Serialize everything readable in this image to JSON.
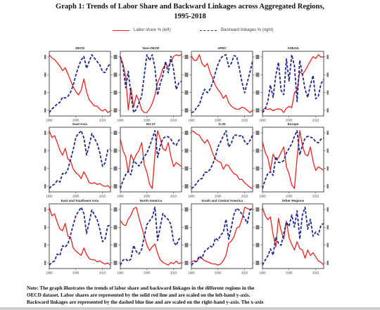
{
  "title": {
    "line1": "Graph 1: Trends of Labor Share and Backward Linkages across Aggregated Regions,",
    "line2": "1995-2018"
  },
  "legend": {
    "red_label": "Labor share % (left)",
    "blue_label": "Backward linkages % (right)"
  },
  "colors": {
    "labor_share": "#e8231e",
    "backward_linkages": "#1f2a8c"
  },
  "x_ticks": [
    "1995",
    "2005",
    "2015"
  ],
  "note": {
    "line1": "Note: The graph illustrates the trends of labor share and backward linkages in the different regions in the",
    "line2": "OECD dataset. Labor shares are represented by the solid red line and are scaled on the left-hand y-axis.",
    "line3": "Backward linkages are represented by the dashed blue line and are scaled on the right-hand y-axis. The x-axis"
  },
  "chart_data": [
    {
      "type": "line",
      "title": "OECD",
      "x": [
        1995,
        1996,
        1997,
        1998,
        1999,
        2000,
        2001,
        2002,
        2003,
        2004,
        2005,
        2006,
        2007,
        2008,
        2009,
        2010,
        2011,
        2012,
        2013,
        2014,
        2015,
        2016,
        2017,
        2018
      ],
      "series": [
        {
          "name": "Labor share % (left)",
          "axis": "left",
          "values": [
            56.8,
            56.6,
            56.5,
            56.3,
            56.1,
            55.8,
            56.0,
            55.6,
            55.2,
            54.8,
            54.5,
            54.3,
            54.6,
            55.3,
            54.5,
            54.0,
            53.8,
            53.6,
            53.6,
            53.4,
            53.3,
            53.4,
            53.2,
            53.3
          ]
        },
        {
          "name": "Backward linkages % (right)",
          "axis": "right",
          "values": [
            10.8,
            11.2,
            11.5,
            11.8,
            12.0,
            12.6,
            12.5,
            12.7,
            13.2,
            14.0,
            15.2,
            16.2,
            17.0,
            17.4,
            16.0,
            16.8,
            17.6,
            17.2,
            16.8,
            16.4,
            15.6,
            15.5,
            16.2,
            16.6
          ]
        }
      ]
    },
    {
      "type": "line",
      "title": "Non-OECD",
      "x": [
        1995,
        1996,
        1997,
        1998,
        1999,
        2000,
        2001,
        2002,
        2003,
        2004,
        2005,
        2006,
        2007,
        2008,
        2009,
        2010,
        2011,
        2012,
        2013,
        2014,
        2015,
        2016,
        2017,
        2018
      ],
      "series": [
        {
          "name": "Labor share % (left)",
          "axis": "left",
          "values": [
            46.0,
            45.2,
            43.8,
            40.2,
            42.6,
            40.5,
            41.8,
            41.2,
            40.2,
            39.9,
            39.9,
            40.3,
            40.9,
            41.8,
            43.2,
            43.8,
            44.7,
            45.2,
            44.9,
            45.5,
            46.0,
            46.2,
            46.1,
            46.2
          ]
        },
        {
          "name": "Backward linkages % (right)",
          "axis": "right",
          "values": [
            26.8,
            25.6,
            23.0,
            25.0,
            22.1,
            20.0,
            20.4,
            21.2,
            22.0,
            24.5,
            27.0,
            26.3,
            27.0,
            25.4,
            22.1,
            23.5,
            24.5,
            26.2,
            24.8,
            26.8,
            25.2,
            22.8,
            23.6,
            23.8
          ]
        }
      ]
    },
    {
      "type": "line",
      "title": "APEC",
      "x": [
        1995,
        1996,
        1997,
        1998,
        1999,
        2000,
        2001,
        2002,
        2003,
        2004,
        2005,
        2006,
        2007,
        2008,
        2009,
        2010,
        2011,
        2012,
        2013,
        2014,
        2015,
        2016,
        2017,
        2018
      ],
      "series": [
        {
          "name": "Labor share % (left)",
          "axis": "left",
          "values": [
            54.9,
            54.5,
            54.5,
            55.0,
            54.2,
            53.9,
            54.2,
            53.4,
            52.8,
            52.2,
            51.8,
            51.5,
            51.0,
            51.3,
            50.6,
            50.3,
            50.1,
            50.0,
            50.0,
            50.2,
            50.1,
            49.9,
            49.7,
            49.9
          ]
        },
        {
          "name": "Backward linkages % (right)",
          "axis": "right",
          "values": [
            13.9,
            14.0,
            14.5,
            14.8,
            15.8,
            16.6,
            16.2,
            16.6,
            17.4,
            18.5,
            19.5,
            20.2,
            20.5,
            20.6,
            19.2,
            19.6,
            20.5,
            20.4,
            19.0,
            17.4,
            16.2,
            17.4,
            18.6,
            19.9
          ]
        }
      ]
    },
    {
      "type": "line",
      "title": "ASEAN",
      "x": [
        1995,
        1996,
        1997,
        1998,
        1999,
        2000,
        2001,
        2002,
        2003,
        2004,
        2005,
        2006,
        2007,
        2008,
        2009,
        2010,
        2011,
        2012,
        2013,
        2014,
        2015,
        2016,
        2017,
        2018
      ],
      "series": [
        {
          "name": "Labor share % (left)",
          "axis": "left",
          "values": [
            37.2,
            37.5,
            37.3,
            37.4,
            37.1,
            37.3,
            37.4,
            37.3,
            36.8,
            37.5,
            37.8,
            37.6,
            40.0,
            40.5,
            43.5,
            43.0,
            43.6,
            44.4,
            45.2,
            45.9,
            45.6,
            46.2,
            45.8,
            45.9
          ]
        },
        {
          "name": "Backward linkages % (right)",
          "axis": "right",
          "values": [
            28.0,
            28.5,
            29.6,
            32.0,
            30.2,
            33.4,
            35.3,
            31.2,
            30.6,
            35.8,
            32.6,
            36.4,
            34.8,
            29.6,
            35.6,
            33.6,
            31.4,
            30.2,
            32.0,
            33.4,
            30.0,
            30.4,
            32.2,
            32.8
          ]
        }
      ]
    },
    {
      "type": "line",
      "title": "East Asia",
      "x": [
        1995,
        1996,
        1997,
        1998,
        1999,
        2000,
        2001,
        2002,
        2003,
        2004,
        2005,
        2006,
        2007,
        2008,
        2009,
        2010,
        2011,
        2012,
        2013,
        2014,
        2015,
        2016,
        2017,
        2018
      ],
      "series": [
        {
          "name": "Labor share % (left)",
          "axis": "left",
          "values": [
            55.2,
            54.5,
            54.7,
            54.0,
            53.2,
            52.7,
            53.4,
            52.3,
            52.1,
            51.3,
            50.9,
            50.7,
            50.3,
            51.0,
            50.5,
            49.9,
            49.8,
            49.9,
            49.7,
            49.8,
            49.6,
            49.5,
            49.6,
            49.3
          ]
        },
        {
          "name": "Backward linkages % (right)",
          "axis": "right",
          "values": [
            13.9,
            14.3,
            14.5,
            15.0,
            14.8,
            16.0,
            15.9,
            16.6,
            18.0,
            19.3,
            21.1,
            21.6,
            22.0,
            21.0,
            18.6,
            19.9,
            21.6,
            20.9,
            20.2,
            18.9,
            17.0,
            17.5,
            19.3,
            19.4
          ]
        }
      ]
    },
    {
      "type": "line",
      "title": "EU-27",
      "x": [
        1995,
        1996,
        1997,
        1998,
        1999,
        2000,
        2001,
        2002,
        2003,
        2004,
        2005,
        2006,
        2007,
        2008,
        2009,
        2010,
        2011,
        2012,
        2013,
        2014,
        2015,
        2016,
        2017,
        2018
      ],
      "series": [
        {
          "name": "Labor share % (left)",
          "axis": "left",
          "values": [
            55.8,
            55.2,
            54.9,
            54.1,
            55.0,
            54.7,
            55.0,
            55.2,
            55.6,
            54.5,
            54.1,
            53.5,
            53.3,
            55.0,
            56.2,
            55.8,
            55.3,
            55.2,
            55.6,
            54.9,
            54.4,
            54.6,
            54.5,
            54.4
          ]
        },
        {
          "name": "Backward linkages % (right)",
          "axis": "right",
          "values": [
            11.6,
            12.5,
            13.2,
            13.6,
            13.2,
            14.8,
            14.5,
            14.2,
            14.7,
            15.3,
            15.7,
            16.5,
            17.4,
            18.3,
            15.2,
            16.5,
            17.4,
            17.6,
            17.6,
            17.3,
            16.8,
            16.6,
            17.2,
            17.4
          ]
        }
      ]
    },
    {
      "type": "line",
      "title": "G-20",
      "x": [
        1995,
        1996,
        1997,
        1998,
        1999,
        2000,
        2001,
        2002,
        2003,
        2004,
        2005,
        2006,
        2007,
        2008,
        2009,
        2010,
        2011,
        2012,
        2013,
        2014,
        2015,
        2016,
        2017,
        2018
      ],
      "series": [
        {
          "name": "Labor share % (left)",
          "axis": "left",
          "values": [
            55.4,
            55.3,
            55.1,
            55.0,
            54.6,
            54.3,
            54.6,
            54.1,
            53.4,
            52.9,
            52.7,
            52.6,
            52.0,
            52.4,
            52.3,
            51.9,
            51.6,
            51.5,
            51.1,
            51.1,
            50.8,
            50.6,
            50.4,
            50.3
          ]
        },
        {
          "name": "Backward linkages % (right)",
          "axis": "right",
          "values": [
            10.8,
            11.0,
            11.4,
            11.8,
            11.9,
            12.6,
            12.6,
            12.9,
            13.5,
            14.3,
            15.4,
            16.0,
            16.6,
            17.2,
            15.4,
            15.8,
            16.7,
            16.7,
            16.6,
            16.7,
            16.0,
            15.7,
            16.1,
            16.7
          ]
        }
      ]
    },
    {
      "type": "line",
      "title": "Europe",
      "x": [
        1995,
        1996,
        1997,
        1998,
        1999,
        2000,
        2001,
        2002,
        2003,
        2004,
        2005,
        2006,
        2007,
        2008,
        2009,
        2010,
        2011,
        2012,
        2013,
        2014,
        2015,
        2016,
        2017,
        2018
      ],
      "series": [
        {
          "name": "Labor share % (left)",
          "axis": "left",
          "values": [
            55.9,
            55.3,
            55.0,
            54.3,
            55.2,
            54.9,
            55.0,
            55.3,
            55.6,
            54.5,
            54.1,
            53.5,
            53.3,
            55.0,
            56.5,
            55.7,
            55.2,
            55.1,
            55.6,
            54.8,
            54.3,
            54.5,
            54.4,
            54.3
          ]
        },
        {
          "name": "Backward linkages % (right)",
          "axis": "right",
          "values": [
            12.2,
            13.1,
            13.8,
            14.0,
            13.6,
            15.6,
            15.0,
            15.0,
            15.2,
            16.0,
            16.5,
            17.0,
            17.8,
            18.4,
            15.8,
            16.8,
            17.6,
            17.8,
            17.7,
            17.6,
            17.2,
            17.1,
            17.5,
            17.6
          ]
        }
      ]
    },
    {
      "type": "line",
      "title": "East and Southeast Asia",
      "x": [
        1995,
        1996,
        1997,
        1998,
        1999,
        2000,
        2001,
        2002,
        2003,
        2004,
        2005,
        2006,
        2007,
        2008,
        2009,
        2010,
        2011,
        2012,
        2013,
        2014,
        2015,
        2016,
        2017,
        2018
      ],
      "series": [
        {
          "name": "Labor share % (left)",
          "axis": "left",
          "values": [
            54.0,
            53.2,
            53.4,
            52.6,
            52.0,
            51.8,
            52.5,
            51.3,
            51.2,
            50.2,
            49.9,
            49.7,
            49.5,
            50.2,
            49.6,
            49.2,
            49.1,
            49.1,
            48.9,
            49.0,
            48.8,
            48.7,
            48.8,
            48.6
          ]
        },
        {
          "name": "Backward linkages % (right)",
          "axis": "right",
          "values": [
            15.2,
            15.6,
            15.8,
            16.8,
            16.6,
            18.0,
            17.8,
            18.3,
            19.6,
            21.0,
            22.4,
            23.0,
            23.6,
            22.7,
            19.8,
            21.4,
            23.2,
            22.5,
            21.8,
            20.4,
            18.6,
            19.0,
            20.9,
            21.0
          ]
        }
      ]
    },
    {
      "type": "line",
      "title": "North America",
      "x": [
        1995,
        1996,
        1997,
        1998,
        1999,
        2000,
        2001,
        2002,
        2003,
        2004,
        2005,
        2006,
        2007,
        2008,
        2009,
        2010,
        2011,
        2012,
        2013,
        2014,
        2015,
        2016,
        2017,
        2018
      ],
      "series": [
        {
          "name": "Labor share % (left)",
          "axis": "left",
          "values": [
            58.5,
            58.2,
            58.1,
            58.6,
            58.9,
            59.4,
            59.5,
            58.7,
            58.0,
            57.3,
            56.6,
            56.2,
            56.5,
            56.7,
            56.0,
            55.5,
            55.3,
            55.2,
            55.1,
            55.3,
            55.2,
            55.4,
            55.2,
            55.3
          ]
        },
        {
          "name": "Backward linkages % (right)",
          "axis": "right",
          "values": [
            8.9,
            9.3,
            9.4,
            9.2,
            9.4,
            10.5,
            10.0,
            9.8,
            10.2,
            11.2,
            12.2,
            12.5,
            12.8,
            13.6,
            10.9,
            12.0,
            13.1,
            12.8,
            12.6,
            12.2,
            10.8,
            10.5,
            11.0,
            11.2
          ]
        }
      ]
    },
    {
      "type": "line",
      "title": "South and Central America",
      "x": [
        1995,
        1996,
        1997,
        1998,
        1999,
        2000,
        2001,
        2002,
        2003,
        2004,
        2005,
        2006,
        2007,
        2008,
        2009,
        2010,
        2011,
        2012,
        2013,
        2014,
        2015,
        2016,
        2017,
        2018
      ],
      "series": [
        {
          "name": "Labor share % (left)",
          "axis": "left",
          "values": [
            41.5,
            41.6,
            41.5,
            41.9,
            41.8,
            41.6,
            41.5,
            41.4,
            41.3,
            41.3,
            41.2,
            41.3,
            41.6,
            42.1,
            43.2,
            43.4,
            43.8,
            44.6,
            44.7,
            45.4,
            46.5,
            46.4,
            46.3,
            46.3
          ]
        },
        {
          "name": "Backward linkages % (right)",
          "axis": "right",
          "values": [
            8.9,
            9.2,
            9.3,
            9.8,
            9.6,
            10.3,
            10.5,
            10.8,
            10.7,
            11.6,
            11.4,
            11.9,
            12.2,
            13.5,
            11.5,
            12.7,
            14.0,
            14.6,
            14.4,
            14.0,
            13.6,
            13.1,
            14.4,
            14.7
          ]
        }
      ]
    },
    {
      "type": "line",
      "title": "Other Regions",
      "x": [
        1995,
        1996,
        1997,
        1998,
        1999,
        2000,
        2001,
        2002,
        2003,
        2004,
        2005,
        2006,
        2007,
        2008,
        2009,
        2010,
        2011,
        2012,
        2013,
        2014,
        2015,
        2016,
        2017,
        2018
      ],
      "series": [
        {
          "name": "Labor share % (left)",
          "axis": "left",
          "values": [
            46.6,
            46.0,
            45.7,
            45.9,
            44.6,
            43.7,
            45.8,
            44.9,
            44.3,
            45.6,
            44.4,
            43.9,
            43.5,
            44.1,
            43.6,
            43.5,
            42.9,
            43.5,
            43.1,
            43.3,
            43.0,
            42.7,
            42.6,
            42.4
          ]
        },
        {
          "name": "Backward linkages % (right)",
          "axis": "right",
          "values": [
            21.3,
            22.0,
            22.6,
            23.6,
            22.7,
            25.3,
            24.4,
            24.1,
            25.8,
            27.4,
            26.8,
            28.4,
            26.7,
            29.0,
            25.0,
            28.4,
            29.5,
            26.4,
            27.8,
            25.4,
            26.0,
            25.6,
            27.0,
            27.2
          ]
        }
      ]
    }
  ]
}
